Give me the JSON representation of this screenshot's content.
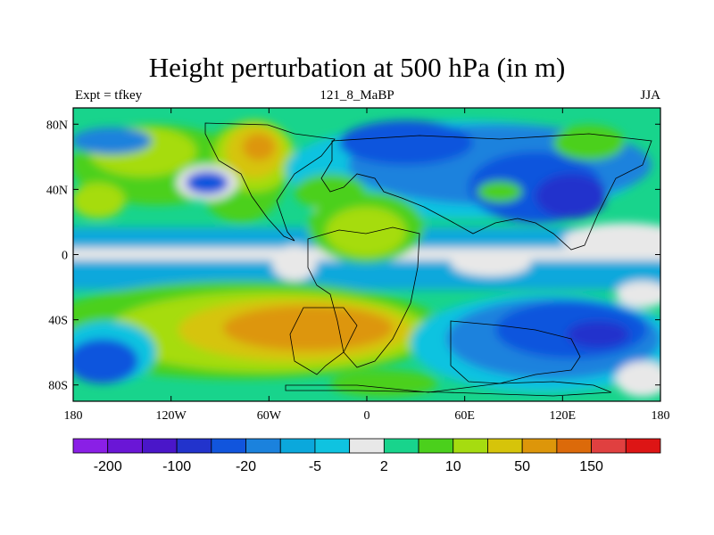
{
  "chart_data": {
    "type": "heatmap",
    "title": "Height perturbation at 500 hPa (in m)",
    "left_label": "Expt = tfkey",
    "center_label": "121_8_MaBP",
    "right_label": "JJA",
    "x_ticks": [
      {
        "value": -180,
        "label": "180"
      },
      {
        "value": -120,
        "label": "120W"
      },
      {
        "value": -60,
        "label": "60W"
      },
      {
        "value": 0,
        "label": "0"
      },
      {
        "value": 60,
        "label": "60E"
      },
      {
        "value": 120,
        "label": "120E"
      },
      {
        "value": 180,
        "label": "180"
      }
    ],
    "y_ticks": [
      {
        "value": 80,
        "label": "80N"
      },
      {
        "value": 40,
        "label": "40N"
      },
      {
        "value": 0,
        "label": "0"
      },
      {
        "value": -40,
        "label": "40S"
      },
      {
        "value": -80,
        "label": "80S"
      }
    ],
    "xlim": [
      -180,
      180
    ],
    "ylim": [
      -90,
      90
    ],
    "colorbar": {
      "levels": [
        -200,
        -150,
        -100,
        -50,
        -20,
        -10,
        -5,
        -2,
        2,
        5,
        10,
        20,
        50,
        100,
        150,
        200
      ],
      "colors": [
        "#8a1fe6",
        "#6a16d6",
        "#4a16c9",
        "#2233cc",
        "#1155dd",
        "#1b82dd",
        "#0ba8dc",
        "#0fc3e0",
        "#e8e8e8",
        "#18d48c",
        "#4bd01c",
        "#a6dc10",
        "#d6c40a",
        "#dd960a",
        "#dc6a0a",
        "#e04040",
        "#dd1515"
      ],
      "labels": [
        {
          "after_level": -200,
          "label": "-200"
        },
        {
          "after_level": -100,
          "label": "-100"
        },
        {
          "after_level": -20,
          "label": "-20"
        },
        {
          "after_level": -5,
          "label": "-5"
        },
        {
          "after_level": 2,
          "label": "2"
        },
        {
          "after_level": 10,
          "label": "10"
        },
        {
          "after_level": 50,
          "label": "50"
        },
        {
          "after_level": 150,
          "label": "150"
        }
      ]
    }
  }
}
